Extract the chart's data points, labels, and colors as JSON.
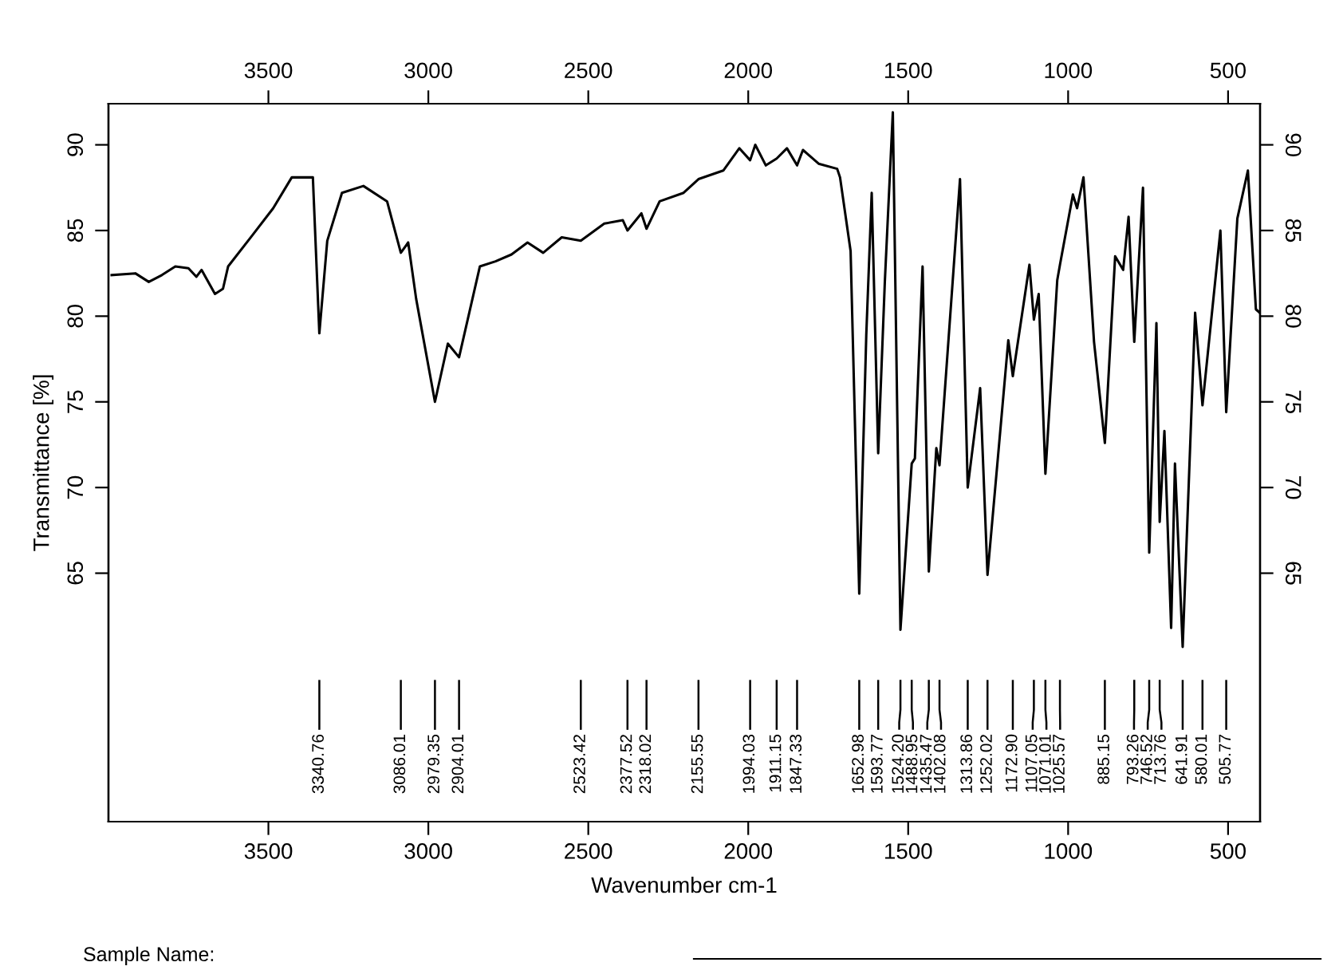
{
  "chart_data": {
    "type": "line",
    "xlabel": "Wavenumber cm-1",
    "ylabel": "Transmittance [%]",
    "x": [
      3990,
      3916,
      3874,
      3833,
      3791,
      3750,
      3725,
      3709,
      3667,
      3642,
      3626,
      3551,
      3485,
      3427,
      3361,
      3340.76,
      3316,
      3270,
      3203,
      3129,
      3086.01,
      3063,
      3038,
      2979.35,
      2939,
      2904.01,
      2839,
      2790,
      2740,
      2690,
      2641,
      2583,
      2523.42,
      2450,
      2392,
      2377.52,
      2334,
      2318.02,
      2277,
      2202,
      2155.55,
      2078,
      2028,
      1994.03,
      1978,
      1945,
      1911.15,
      1879,
      1847.33,
      1829,
      1780,
      1722,
      1713,
      1680,
      1652.98,
      1631,
      1614,
      1593.77,
      1573,
      1548,
      1524.2,
      1488.95,
      1479,
      1455,
      1435.47,
      1412,
      1402.08,
      1338,
      1313.86,
      1275,
      1252.02,
      1187,
      1172.9,
      1121,
      1107.05,
      1092,
      1071.01,
      1034,
      1025.57,
      985,
      972,
      952,
      919,
      885.15,
      853,
      828,
      811,
      793.26,
      766,
      746.52,
      724,
      713.76,
      699,
      678,
      666,
      641.91,
      603,
      580.01,
      524,
      505.77,
      471,
      438,
      413,
      401
    ],
    "series": [
      {
        "color": "#000000",
        "values": [
          82.4,
          82.5,
          82.0,
          82.4,
          82.9,
          82.8,
          82.3,
          82.7,
          81.3,
          81.6,
          82.9,
          84.7,
          86.3,
          88.1,
          88.1,
          79.0,
          84.4,
          87.2,
          87.6,
          86.7,
          83.7,
          84.3,
          81.0,
          75.0,
          78.4,
          77.6,
          82.9,
          83.2,
          83.6,
          84.3,
          83.7,
          84.6,
          84.4,
          85.4,
          85.6,
          85.0,
          86.0,
          85.1,
          86.7,
          87.2,
          88.0,
          88.5,
          89.8,
          89.1,
          90.0,
          88.8,
          89.2,
          89.8,
          88.8,
          89.7,
          88.9,
          88.6,
          88.1,
          83.8,
          63.8,
          78.9,
          87.2,
          72.0,
          82.0,
          91.9,
          61.7,
          71.4,
          71.7,
          82.9,
          65.1,
          72.3,
          71.3,
          88.0,
          70.0,
          75.8,
          64.9,
          78.6,
          76.5,
          83.0,
          79.8,
          81.3,
          70.8,
          82.1,
          83.0,
          87.1,
          86.3,
          88.1,
          78.5,
          72.6,
          83.5,
          82.7,
          85.8,
          78.5,
          87.5,
          66.2,
          79.6,
          68.0,
          73.3,
          61.8,
          71.4,
          60.7,
          80.2,
          74.8,
          85.0,
          74.4,
          85.7,
          88.5,
          80.4,
          80.2
        ]
      }
    ],
    "xlim": [
      4000,
      400
    ],
    "xticks": [
      3500,
      3000,
      2500,
      2000,
      1500,
      1000,
      500
    ],
    "x2lim": [
      4000,
      400
    ],
    "x2ticks": [
      3500,
      3000,
      2500,
      2000,
      1500,
      1000,
      500
    ],
    "ylim": [
      50.5,
      92.4
    ],
    "yticks": [
      65,
      70,
      75,
      80,
      85,
      90
    ],
    "y2lim": [
      50.5,
      92.4
    ],
    "y2ticks": [
      65,
      70,
      75,
      80,
      85,
      90
    ],
    "grid": false,
    "legend": false,
    "marker": "none",
    "line_style": "solid",
    "annotations": [
      "3340.76",
      "3086.01",
      "2979.35",
      "2904.01",
      "2523.42",
      "2377.52",
      "2318.02",
      "2155.55",
      "1994.03",
      "1911.15",
      "1847.33",
      "1652.98",
      "1593.77",
      "1524.20",
      "1488.95",
      "1435.47",
      "1402.08",
      "1313.86",
      "1252.02",
      "1172.90",
      "1107.05",
      "1071.01",
      "1025.57",
      "885.15",
      "793.26",
      "746.52",
      "713.76",
      "641.91",
      "580.01",
      "505.77",
      "Sample Name:"
    ]
  }
}
